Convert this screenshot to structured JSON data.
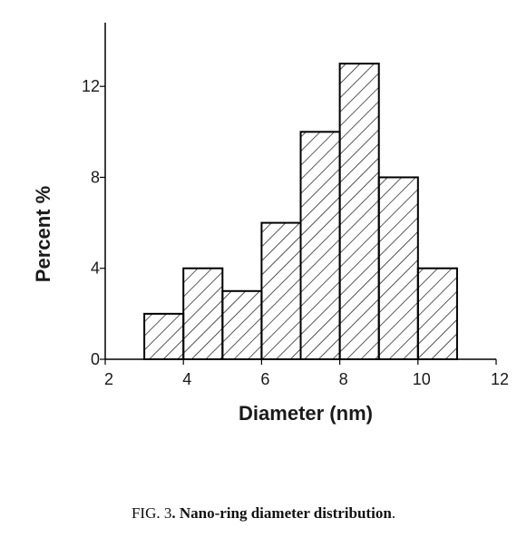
{
  "chart_data": {
    "type": "bar",
    "style": "histogram",
    "fill": "diagonal-hatch",
    "xlabel": "Diameter (nm)",
    "ylabel": "Percent %",
    "xlim": [
      2,
      12
    ],
    "ylim": [
      0,
      14.8
    ],
    "xticks": [
      2,
      4,
      6,
      8,
      10,
      12
    ],
    "yticks": [
      0,
      4,
      8,
      12
    ],
    "bins": [
      {
        "start": 3,
        "end": 4,
        "value": 2
      },
      {
        "start": 4,
        "end": 5,
        "value": 4
      },
      {
        "start": 5,
        "end": 6,
        "value": 3
      },
      {
        "start": 6,
        "end": 7,
        "value": 6
      },
      {
        "start": 7,
        "end": 8,
        "value": 10
      },
      {
        "start": 8,
        "end": 9,
        "value": 13
      },
      {
        "start": 9,
        "end": 10,
        "value": 8
      },
      {
        "start": 10,
        "end": 11,
        "value": 4
      }
    ],
    "colors": {
      "bar_stroke": "#000000",
      "hatch": "#000000",
      "axis": "#000000"
    }
  },
  "caption": {
    "prefix": "FIG. 3",
    "title": ". Nano-ring diameter distribution",
    "suffix": "."
  }
}
